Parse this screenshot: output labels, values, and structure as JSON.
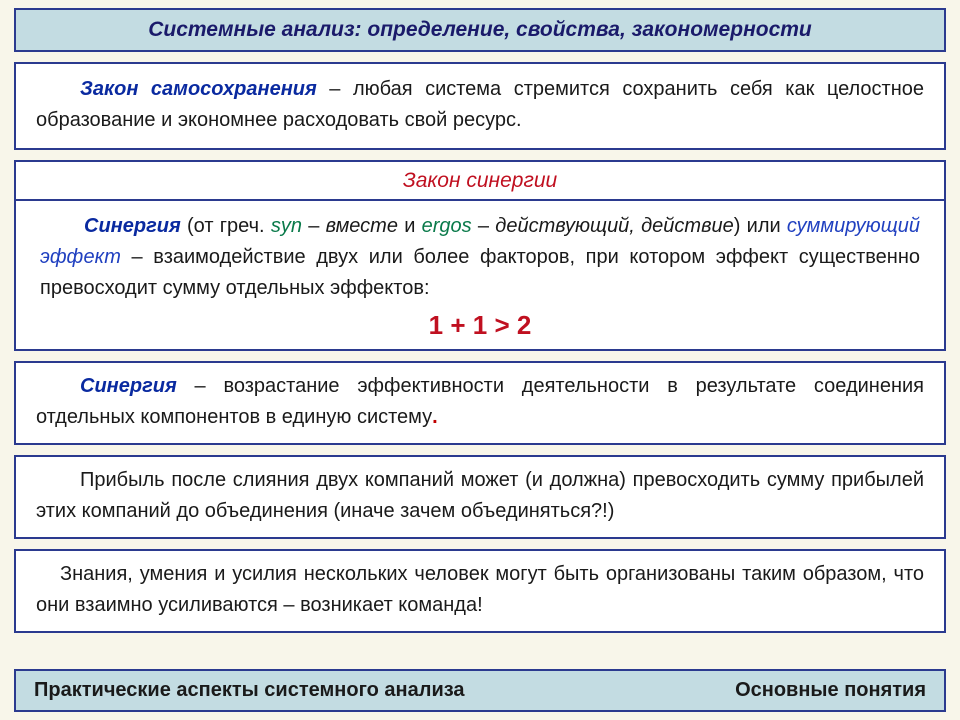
{
  "colors": {
    "page_bg": "#f8f6ea",
    "bar_bg": "#c3dce2",
    "border": "#2b3a8f",
    "title_color": "#1a1a6a",
    "text_color": "#1a1a1a",
    "term_blue": "#0a2aa0",
    "greek_green": "#0a7a4a",
    "red": "#c01020",
    "ital_blue": "#2040c0"
  },
  "header": {
    "title": "Системные анализ: определение, свойства, закономерности"
  },
  "box1": {
    "term": "Закон самосохранения",
    "rest": " – любая система стремится сохранить себя как целостное образование и экономнее расходовать свой ресурс."
  },
  "synergy": {
    "head": "Закон синергии",
    "p1_term": "Синергия",
    "p1_a": " (от греч. ",
    "p1_syn": "syn",
    "p1_b": " – ",
    "p1_vmeste": "вместе",
    "p1_c": " и ",
    "p1_ergos": "ergos",
    "p1_d": " – ",
    "p1_deist": "действующий, действие",
    "p1_e": ") или ",
    "p1_sum": "суммирующий эффект",
    "p1_f": " – взаимодействие двух или более факторов, при котором эффект существенно превосходит сумму отдельных эффектов:",
    "formula": "1 + 1 > 2"
  },
  "box3": {
    "term": "Синергия",
    "rest": " – возрастание эффективности деятельности в результате соединения отдельных компонентов в единую систему",
    "period": "."
  },
  "box4": {
    "text": "Прибыль после слияния двух компаний может (и должна) превосходить сумму прибылей этих компаний до объединения (иначе зачем объединяться?!)"
  },
  "box5": {
    "text": "Знания, умения и усилия нескольких человек могут быть организованы таким образом, что они взаимно усиливаются – возникает команда!"
  },
  "footer": {
    "left": "Практические аспекты системного анализа",
    "right": "Основные понятия"
  }
}
